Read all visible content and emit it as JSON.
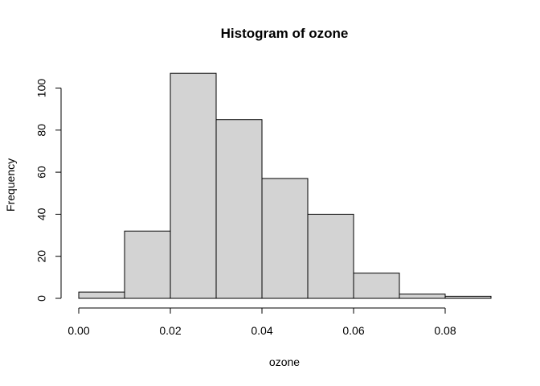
{
  "chart_data": {
    "type": "bar",
    "title": "Histogram of ozone",
    "xlabel": "ozone",
    "ylabel": "Frequency",
    "bins": [
      {
        "start": 0.0,
        "end": 0.01,
        "count": 3
      },
      {
        "start": 0.01,
        "end": 0.02,
        "count": 32
      },
      {
        "start": 0.02,
        "end": 0.03,
        "count": 107
      },
      {
        "start": 0.03,
        "end": 0.04,
        "count": 85
      },
      {
        "start": 0.04,
        "end": 0.05,
        "count": 57
      },
      {
        "start": 0.05,
        "end": 0.06,
        "count": 40
      },
      {
        "start": 0.06,
        "end": 0.07,
        "count": 12
      },
      {
        "start": 0.07,
        "end": 0.08,
        "count": 2
      },
      {
        "start": 0.08,
        "end": 0.09,
        "count": 1
      }
    ],
    "x_ticks": [
      0.0,
      0.02,
      0.04,
      0.06,
      0.08
    ],
    "x_tick_labels": [
      "0.00",
      "0.02",
      "0.04",
      "0.06",
      "0.08"
    ],
    "y_ticks": [
      0,
      20,
      40,
      60,
      80,
      100
    ],
    "y_tick_labels": [
      "0",
      "20",
      "40",
      "60",
      "80",
      "100"
    ],
    "bar_color": "#d3d3d3",
    "grid": false,
    "legend": false
  }
}
